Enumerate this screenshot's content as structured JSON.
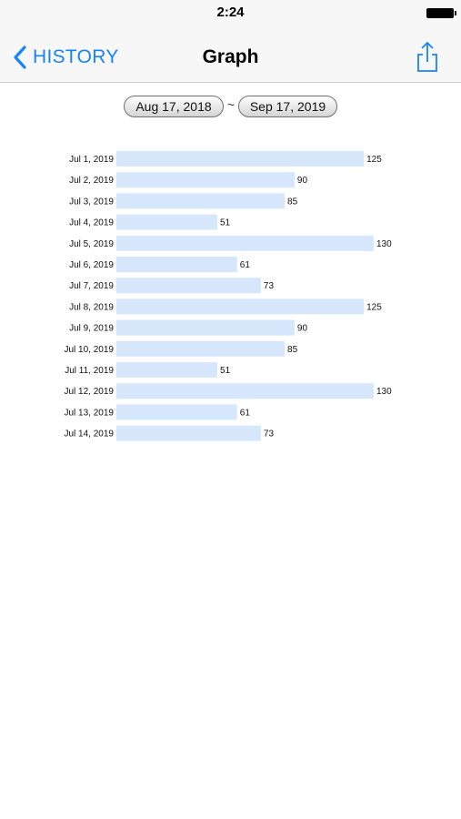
{
  "status_bar": {
    "time": "2:24"
  },
  "nav": {
    "back_label": "HISTORY",
    "title": "Graph"
  },
  "icons": {
    "back": "chevron-left-icon",
    "share": "share-icon"
  },
  "date_range": {
    "start": "Aug 17, 2018",
    "separator": "~",
    "end": "Sep 17, 2019"
  },
  "colors": {
    "accent": "#1a82f7",
    "bar_fill": "#d6e6fb"
  },
  "chart_data": {
    "type": "bar",
    "orientation": "horizontal",
    "title": "",
    "xlabel": "",
    "ylabel": "",
    "categories": [
      "Jul 1, 2019",
      "Jul 2, 2019",
      "Jul 3, 2019",
      "Jul 4, 2019",
      "Jul 5, 2019",
      "Jul 6, 2019",
      "Jul 7, 2019",
      "Jul 8, 2019",
      "Jul 9, 2019",
      "Jul 10, 2019",
      "Jul 11, 2019",
      "Jul 12, 2019",
      "Jul 13, 2019",
      "Jul 14, 2019"
    ],
    "values": [
      125,
      90,
      85,
      51,
      130,
      61,
      73,
      125,
      90,
      85,
      51,
      130,
      61,
      73
    ],
    "xlim": [
      0,
      130
    ],
    "grid": false,
    "legend": "none",
    "data_labels": true
  }
}
